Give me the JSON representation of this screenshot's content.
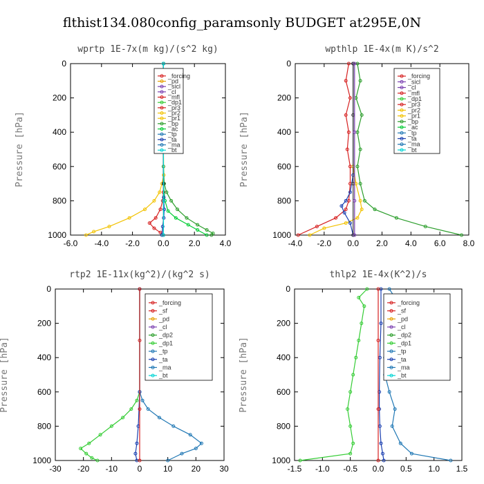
{
  "figure_title": "flthist134.080config_paramsonly  BUDGET at295E,0N",
  "chart_data": [
    {
      "type": "line",
      "title": "wprtp  1E-7x(m kg)/(s^2 kg)",
      "ylabel": "Pressure [hPa]",
      "xlim": [
        -6,
        4
      ],
      "ylim": [
        0,
        1000
      ],
      "y_inverted": true,
      "xticks": [
        -6,
        -4,
        -2,
        0,
        2,
        4
      ],
      "xtick_labels": [
        "-6.0",
        "-4.0",
        "-2.0",
        "0.0",
        "2.0",
        "4.0"
      ],
      "yticks": [
        0,
        200,
        400,
        600,
        800,
        1000
      ],
      "ytick_labels": [
        "0",
        "200",
        "400",
        "600",
        "800",
        "1000"
      ],
      "legend": [
        "_forcing",
        "_pd",
        "_sicl",
        "_cl",
        "_mfl",
        "_dp1",
        "_pr3",
        "_pr2",
        "_pr1",
        "_bp",
        "_ac",
        "_tp",
        "_ta",
        "_ma",
        "_bt"
      ],
      "series": [
        {
          "name": "_pr1",
          "color": "#f2c200",
          "x": [
            0,
            0,
            0.02,
            -0.1,
            -0.25,
            -0.6,
            -1.2,
            -2.2,
            -3.5,
            -4.5,
            -5.0
          ],
          "y": [
            0,
            500,
            650,
            700,
            750,
            800,
            850,
            900,
            950,
            980,
            1000
          ]
        },
        {
          "name": "_tp",
          "color": "#2a9d2a",
          "x": [
            0,
            0,
            0.05,
            0.2,
            0.5,
            0.9,
            1.5,
            2.2,
            2.8,
            3.2,
            3.1
          ],
          "y": [
            0,
            600,
            700,
            750,
            800,
            850,
            900,
            940,
            970,
            990,
            1000
          ]
        },
        {
          "name": "_mfl",
          "color": "#d62020",
          "x": [
            0,
            0,
            -0.05,
            -0.2,
            -0.5,
            -0.9,
            -0.6,
            -0.2,
            0
          ],
          "y": [
            0,
            750,
            800,
            850,
            900,
            930,
            960,
            985,
            1000
          ]
        },
        {
          "name": "_ac",
          "color": "#00cc33",
          "x": [
            0,
            0,
            0.1,
            0.3,
            0.8,
            1.6,
            2.2,
            2.8
          ],
          "y": [
            0,
            700,
            800,
            860,
            900,
            940,
            970,
            1000
          ]
        },
        {
          "name": "_ta",
          "color": "#1a3fb0",
          "x": [
            0,
            0,
            0.02,
            0.05,
            0.02,
            -0.05,
            -0.1
          ],
          "y": [
            0,
            700,
            780,
            850,
            900,
            950,
            1000
          ]
        },
        {
          "name": "_forcing",
          "color": "#333333",
          "x": [
            0,
            0,
            0,
            0
          ],
          "y": [
            0,
            300,
            700,
            1000
          ]
        },
        {
          "name": "_bt",
          "color": "#00d4d4",
          "x": [
            0,
            0,
            0.01,
            0
          ],
          "y": [
            0,
            500,
            800,
            1000
          ]
        }
      ]
    },
    {
      "type": "line",
      "title": "wpthlp  1E-4x(m K)/s^2",
      "ylabel": "Pressure [hPa]",
      "xlim": [
        -4,
        8
      ],
      "ylim": [
        0,
        1000
      ],
      "y_inverted": true,
      "xticks": [
        -4,
        -2,
        0,
        2,
        4,
        6,
        8
      ],
      "xtick_labels": [
        "-4.0",
        "-2.0",
        "0.0",
        "2.0",
        "4.0",
        "6.0",
        "8.0"
      ],
      "yticks": [
        0,
        200,
        400,
        600,
        800,
        1000
      ],
      "ytick_labels": [
        "0",
        "200",
        "400",
        "600",
        "800",
        "1000"
      ],
      "legend": [
        "_forcing",
        "_sicl",
        "_cl",
        "_mfl",
        "_dp1",
        "_pr3",
        "_pr2",
        "_pr1",
        "_bp",
        "_ac",
        "_tp",
        "_ta",
        "_ma",
        "_bt"
      ],
      "series": [
        {
          "name": "_tp",
          "color": "#2a9d2a",
          "x": [
            0.3,
            0.5,
            0.2,
            0.6,
            0.3,
            0.5,
            0.3,
            0.5,
            0.8,
            1.5,
            3.0,
            5.0,
            7.5
          ],
          "y": [
            0,
            100,
            200,
            300,
            400,
            500,
            600,
            700,
            800,
            850,
            900,
            950,
            1000
          ]
        },
        {
          "name": "_mfl",
          "color": "#d62020",
          "x": [
            -0.3,
            -0.5,
            -0.2,
            -0.5,
            -0.3,
            -0.4,
            -0.2,
            -0.2,
            -0.3,
            -0.5,
            -1.2,
            -2.5,
            -3.8
          ],
          "y": [
            0,
            100,
            200,
            300,
            400,
            500,
            600,
            700,
            800,
            850,
            900,
            950,
            1000
          ]
        },
        {
          "name": "_pr1",
          "color": "#f2c200",
          "x": [
            0,
            0,
            0.2,
            0.5,
            0.6,
            0.3,
            -0.5,
            -2.0,
            -3.0
          ],
          "y": [
            0,
            600,
            700,
            800,
            850,
            900,
            930,
            960,
            1000
          ]
        },
        {
          "name": "_ta",
          "color": "#1a3fb0",
          "x": [
            0,
            0,
            -0.2,
            -0.5,
            -0.8,
            -0.6,
            -0.2,
            0
          ],
          "y": [
            0,
            650,
            750,
            800,
            830,
            870,
            930,
            1000
          ]
        },
        {
          "name": "_forcing",
          "color": "#333333",
          "x": [
            0,
            0,
            0,
            0
          ],
          "y": [
            0,
            300,
            700,
            1000
          ]
        },
        {
          "name": "_cl",
          "color": "#7a3fb0",
          "x": [
            0.1,
            0.1,
            0.1,
            0.1
          ],
          "y": [
            0,
            400,
            800,
            1000
          ]
        }
      ]
    },
    {
      "type": "line",
      "title": "rtp2  1E-11x(kg^2)/(kg^2 s)",
      "ylabel": "Pressure [hPa]",
      "xlim": [
        -30,
        30
      ],
      "ylim": [
        0,
        1000
      ],
      "y_inverted": true,
      "xticks": [
        -30,
        -20,
        -10,
        0,
        10,
        20,
        30
      ],
      "xtick_labels": [
        "-30",
        "-20",
        "-10",
        "0",
        "10",
        "20",
        "30"
      ],
      "yticks": [
        0,
        200,
        400,
        600,
        800,
        1000
      ],
      "ytick_labels": [
        "0",
        "200",
        "400",
        "600",
        "800",
        "1000"
      ],
      "legend": [
        "_forcing",
        "_sf",
        "_pd",
        "_cl",
        "_dp2",
        "_dp1",
        "_tp",
        "_ta",
        "_ma",
        "_bt"
      ],
      "series": [
        {
          "name": "_dp1",
          "color": "#33cc33",
          "x": [
            0,
            0,
            -1,
            -3,
            -6,
            -10,
            -14,
            -18,
            -21,
            -19,
            -17,
            -15
          ],
          "y": [
            0,
            600,
            650,
            700,
            750,
            800,
            850,
            900,
            930,
            960,
            985,
            1000
          ]
        },
        {
          "name": "_tp",
          "color": "#1f77b4",
          "x": [
            0,
            0,
            1,
            3,
            7,
            12,
            18,
            22,
            20,
            15,
            10
          ],
          "y": [
            0,
            600,
            650,
            700,
            750,
            800,
            850,
            900,
            930,
            960,
            1000
          ]
        },
        {
          "name": "_ta",
          "color": "#1a3fb0",
          "x": [
            0,
            0,
            -0.5,
            -1,
            -1.5,
            -1
          ],
          "y": [
            0,
            600,
            800,
            900,
            960,
            1000
          ]
        },
        {
          "name": "_forcing",
          "color": "#d62020",
          "x": [
            0,
            0,
            0,
            0
          ],
          "y": [
            0,
            300,
            700,
            1000
          ]
        }
      ]
    },
    {
      "type": "line",
      "title": "thlp2  1E-4x(K^2)/s",
      "ylabel": "Pressure [hPa]",
      "xlim": [
        -1.5,
        1.5
      ],
      "ylim": [
        0,
        1000
      ],
      "y_inverted": true,
      "xticks": [
        -1.5,
        -1.0,
        -0.5,
        0,
        0.5,
        1.0,
        1.5
      ],
      "xtick_labels": [
        "-1.5",
        "-1.0",
        "-0.5",
        "0.0",
        "0.5",
        "1.0",
        "1.5"
      ],
      "yticks": [
        0,
        200,
        400,
        600,
        800,
        1000
      ],
      "ytick_labels": [
        "0",
        "200",
        "400",
        "600",
        "800",
        "1000"
      ],
      "legend": [
        "_forcing",
        "_sf",
        "_pd",
        "_cl",
        "_dp2",
        "_dp1",
        "_tp",
        "_ta",
        "_ma",
        "_bt"
      ],
      "series": [
        {
          "name": "_dp1",
          "color": "#33cc33",
          "x": [
            -0.2,
            -0.35,
            -0.25,
            -0.3,
            -0.35,
            -0.4,
            -0.45,
            -0.5,
            -0.55,
            -0.5,
            -0.45,
            -0.5,
            -1.4
          ],
          "y": [
            0,
            50,
            100,
            200,
            300,
            400,
            500,
            600,
            700,
            800,
            900,
            960,
            1000
          ]
        },
        {
          "name": "_tp",
          "color": "#1f77b4",
          "x": [
            0.2,
            0.3,
            0.15,
            0.18,
            0.15,
            0.12,
            0.12,
            0.2,
            0.3,
            0.25,
            0.4,
            0.6,
            1.3
          ],
          "y": [
            0,
            50,
            100,
            200,
            300,
            400,
            500,
            600,
            700,
            800,
            900,
            960,
            1000
          ]
        },
        {
          "name": "_ta",
          "color": "#1a3fb0",
          "x": [
            0.05,
            0.05,
            0.03,
            0.02,
            0.02,
            0.03,
            0.05,
            0.08,
            0.1
          ],
          "y": [
            0,
            200,
            400,
            600,
            700,
            800,
            900,
            960,
            1000
          ]
        },
        {
          "name": "_forcing",
          "color": "#d62020",
          "x": [
            0,
            0,
            0,
            0
          ],
          "y": [
            0,
            300,
            700,
            1000
          ]
        }
      ]
    }
  ]
}
